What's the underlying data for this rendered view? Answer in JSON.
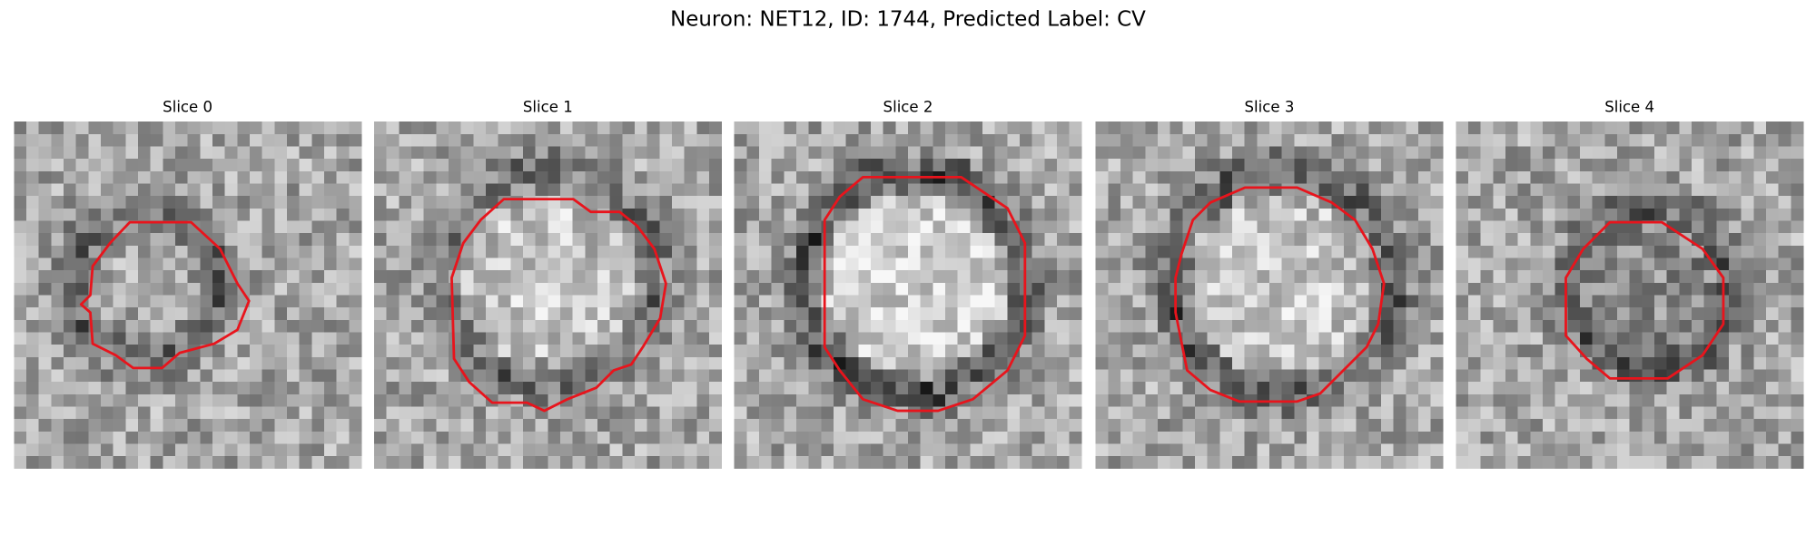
{
  "figure": {
    "title": "Neuron: NET12, ID: 1744, Predicted Label: CV",
    "panels": [
      {
        "title": "Slice 0"
      },
      {
        "title": "Slice 1"
      },
      {
        "title": "Slice 2"
      },
      {
        "title": "Slice 3"
      },
      {
        "title": "Slice 4"
      }
    ]
  }
}
